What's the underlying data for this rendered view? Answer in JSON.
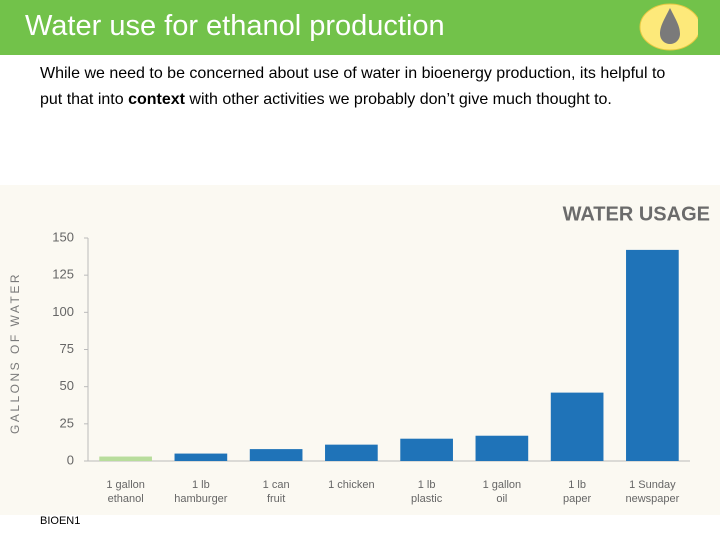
{
  "header": {
    "title": "Water use for ethanol production"
  },
  "intro": {
    "before": "While we need to be concerned about use of water in bioenergy production, its helpful to put that into ",
    "bold": "context",
    "after": " with other activities we probably don’t give much thought to."
  },
  "footer": "BIOEN1",
  "chart_data": {
    "type": "bar",
    "title": "WATER USAGE",
    "y_label": "GALLONS OF WATER",
    "categories": [
      "1 gallon\nethanol",
      "1 lb\nhamburger",
      "1 can\nfruit",
      "1 chicken",
      "1 lb\nplastic",
      "1 gallon\noil",
      "1 lb\npaper",
      "1 Sunday\nnewspaper"
    ],
    "values": [
      3,
      5,
      8,
      11,
      15,
      17,
      46,
      142
    ],
    "colors": [
      "#b8dd9c",
      "#1f73b8",
      "#1f73b8",
      "#1f73b8",
      "#1f73b8",
      "#1f73b8",
      "#1f73b8",
      "#1f73b8"
    ],
    "ylim": [
      0,
      150
    ],
    "yticks": [
      0,
      25,
      50,
      75,
      100,
      125,
      150
    ],
    "grid": false
  }
}
